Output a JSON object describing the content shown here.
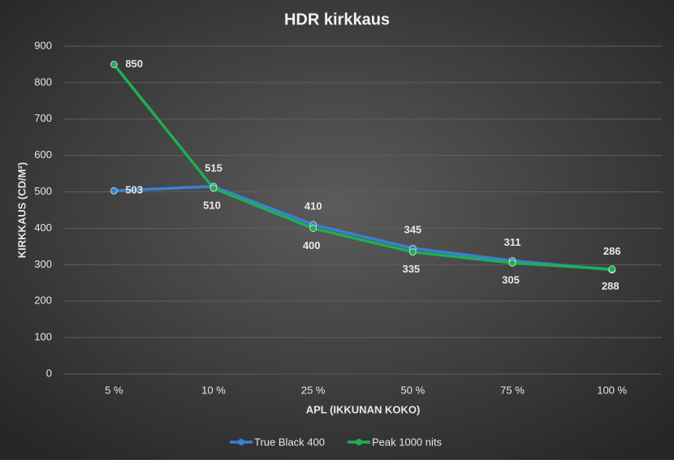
{
  "chart_data": {
    "type": "line",
    "title": "HDR kirkkaus",
    "x_label": "APL (IKKUNAN KOKO)",
    "y_label": "KIRKKAUS (CD/M²)",
    "categories": [
      "5 %",
      "10 %",
      "25 %",
      "50 %",
      "75 %",
      "100 %"
    ],
    "series": [
      {
        "name": "True Black 400",
        "color": "#3a80d2",
        "values": [
          503,
          515,
          410,
          345,
          311,
          286
        ]
      },
      {
        "name": "Peak 1000 nits",
        "color": "#1fae55",
        "values": [
          850,
          510,
          400,
          335,
          305,
          288
        ]
      }
    ],
    "ylim": [
      0,
      900
    ],
    "yticks": [
      0,
      100,
      200,
      300,
      400,
      500,
      600,
      700,
      800,
      900
    ],
    "grid": true,
    "legend": "bottom"
  }
}
